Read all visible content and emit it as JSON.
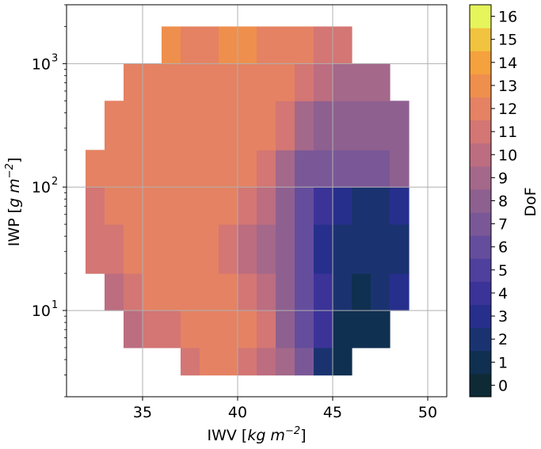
{
  "chart_data": {
    "type": "heatmap",
    "title": "",
    "xlabel": {
      "main": "IWV [",
      "math": "kg m",
      "sup": "−2",
      "close": "]"
    },
    "ylabel": {
      "main": "IWP [",
      "math": "g m",
      "sup": "−2",
      "close": "]"
    },
    "xlim": [
      31,
      51
    ],
    "ylim": [
      2,
      3000
    ],
    "x_scale": "linear",
    "y_scale": "log",
    "grid": true,
    "x_ticks": [
      {
        "value": 35,
        "label": "35"
      },
      {
        "value": 40,
        "label": "40"
      },
      {
        "value": 45,
        "label": "45"
      },
      {
        "value": 50,
        "label": "50"
      }
    ],
    "y_ticks": [
      {
        "value": 10,
        "base": "10",
        "exp": "1"
      },
      {
        "value": 100,
        "base": "10",
        "exp": "2"
      },
      {
        "value": 1000,
        "base": "10",
        "exp": "3"
      }
    ],
    "colorbar": {
      "label": "DoF",
      "vmin": -0.5,
      "vmax": 16.5,
      "ticks": [
        "0",
        "1",
        "2",
        "3",
        "4",
        "5",
        "6",
        "7",
        "8",
        "9",
        "10",
        "11",
        "12",
        "13",
        "14",
        "15",
        "16"
      ],
      "colors": [
        "#0d2a36",
        "#0f3050",
        "#1a3370",
        "#272f8c",
        "#3b3398",
        "#50409e",
        "#654d9d",
        "#7a5897",
        "#8e6090",
        "#a4688a",
        "#bc6d80",
        "#d37674",
        "#e48263",
        "#ef8f4d",
        "#f5a13e",
        "#f1c33f",
        "#e6f55b"
      ]
    },
    "cells": {
      "x_edges": [
        32,
        33,
        34,
        35,
        36,
        37,
        38,
        39,
        40,
        41,
        42,
        43,
        44,
        45,
        46,
        47,
        48,
        49
      ],
      "iwp_edges": [
        3,
        5,
        10,
        20,
        50,
        100,
        200,
        500,
        1000,
        2000
      ],
      "dof_grid": [
        [
          null,
          null,
          null,
          null,
          null,
          11,
          12,
          12,
          11,
          10,
          9,
          7,
          2,
          1,
          null,
          null,
          null
        ],
        [
          null,
          null,
          10,
          11,
          11,
          12,
          12,
          12,
          12,
          11,
          8,
          6,
          4,
          1,
          1,
          1,
          null
        ],
        [
          null,
          10,
          11,
          12,
          12,
          12,
          12,
          12,
          11,
          10,
          8,
          6,
          4,
          2,
          1,
          2,
          3
        ],
        [
          11,
          11,
          12,
          12,
          12,
          12,
          12,
          11,
          10,
          9,
          8,
          6,
          3,
          2,
          2,
          2,
          2
        ],
        [
          11,
          12,
          12,
          12,
          12,
          12,
          12,
          12,
          11,
          10,
          8,
          6,
          4,
          3,
          2,
          2,
          3
        ],
        [
          12,
          12,
          12,
          12,
          12,
          12,
          12,
          12,
          12,
          11,
          9,
          7,
          7,
          7,
          7,
          7,
          8
        ],
        [
          null,
          12,
          12,
          12,
          12,
          12,
          12,
          12,
          12,
          12,
          11,
          9,
          8,
          8,
          8,
          8,
          8
        ],
        [
          null,
          null,
          12,
          12,
          12,
          12,
          12,
          12,
          12,
          12,
          12,
          11,
          10,
          9,
          9,
          9,
          null
        ],
        [
          null,
          null,
          null,
          null,
          13,
          12,
          12,
          13,
          13,
          12,
          12,
          12,
          11,
          11,
          null,
          null,
          null
        ]
      ]
    }
  }
}
